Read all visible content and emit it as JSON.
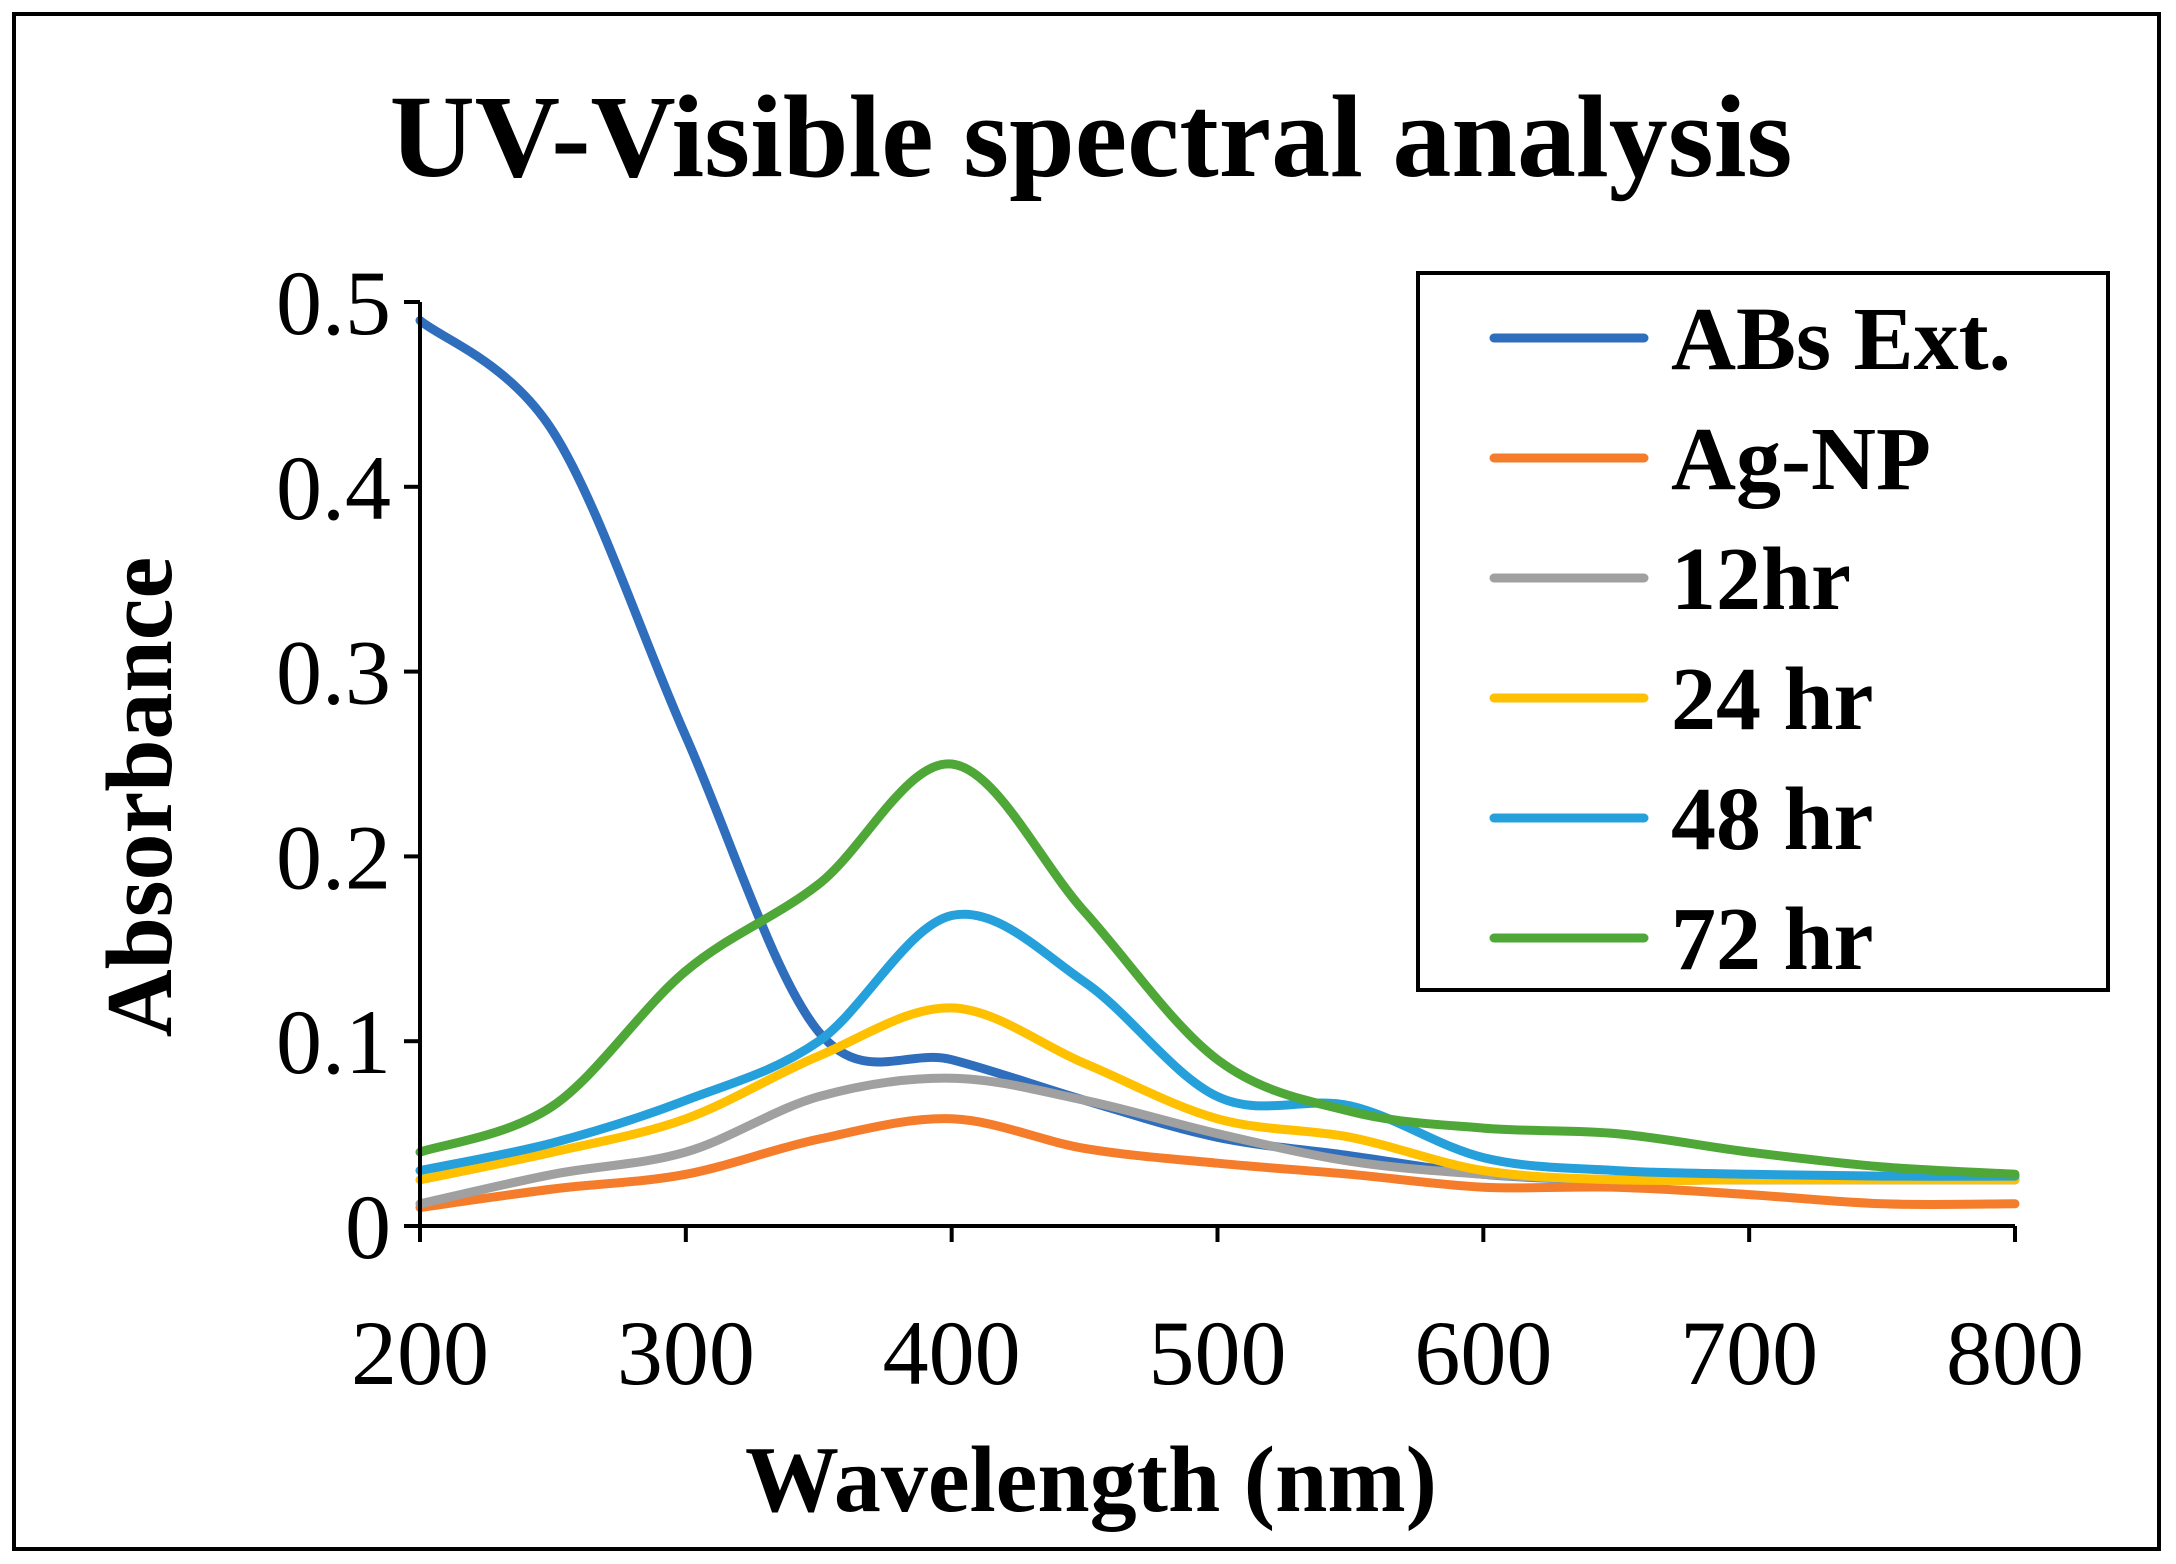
{
  "chart_data": {
    "type": "line",
    "title": "UV-Visible spectral analysis",
    "xlabel": "Wavelength (nm)",
    "ylabel": "Absorbance",
    "xlim": [
      200,
      800
    ],
    "ylim": [
      0,
      0.5
    ],
    "x_ticks": [
      200,
      300,
      400,
      500,
      600,
      700,
      800
    ],
    "x_tick_labels": [
      "200",
      "300",
      "400",
      "500",
      "600",
      "700",
      "800"
    ],
    "y_ticks": [
      0,
      0.1,
      0.2,
      0.3,
      0.4,
      0.5
    ],
    "y_tick_labels": [
      "0",
      "0.1",
      "0.2",
      "0.3",
      "0.4",
      "0.5"
    ],
    "grid": false,
    "legend_position": "top-right",
    "x": [
      200,
      250,
      300,
      350,
      400,
      450,
      500,
      550,
      600,
      650,
      700,
      750,
      800
    ],
    "series": [
      {
        "name": "ABs Ext.",
        "color": "#2E6EBD",
        "values": [
          0.49,
          0.43,
          0.265,
          0.105,
          0.09,
          0.068,
          0.048,
          0.038,
          0.028,
          0.025,
          0.025,
          0.025,
          0.025
        ]
      },
      {
        "name": "Ag-NP",
        "color": "#F47C2A",
        "values": [
          0.01,
          0.02,
          0.028,
          0.047,
          0.058,
          0.042,
          0.034,
          0.028,
          0.021,
          0.021,
          0.017,
          0.012,
          0.012
        ]
      },
      {
        "name": "12hr",
        "color": "#A0A0A0",
        "values": [
          0.012,
          0.028,
          0.04,
          0.07,
          0.08,
          0.068,
          0.05,
          0.035,
          0.028,
          0.025,
          0.025,
          0.025,
          0.025
        ]
      },
      {
        "name": "24 hr",
        "color": "#FFC000",
        "values": [
          0.025,
          0.04,
          0.058,
          0.092,
          0.118,
          0.088,
          0.058,
          0.048,
          0.03,
          0.025,
          0.025,
          0.025,
          0.025
        ]
      },
      {
        "name": "48 hr",
        "color": "#25A0DB",
        "values": [
          0.03,
          0.045,
          0.068,
          0.1,
          0.168,
          0.132,
          0.07,
          0.065,
          0.037,
          0.03,
          0.028,
          0.027,
          0.027
        ]
      },
      {
        "name": "72 hr",
        "color": "#4EA737",
        "values": [
          0.04,
          0.065,
          0.138,
          0.185,
          0.25,
          0.17,
          0.09,
          0.062,
          0.053,
          0.05,
          0.04,
          0.032,
          0.028
        ]
      }
    ]
  }
}
